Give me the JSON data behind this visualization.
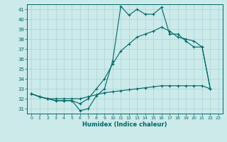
{
  "title": "",
  "xlabel": "Humidex (Indice chaleur)",
  "xlim": [
    -0.5,
    23.5
  ],
  "ylim": [
    30.5,
    41.5
  ],
  "yticks": [
    31,
    32,
    33,
    34,
    35,
    36,
    37,
    38,
    39,
    40,
    41
  ],
  "xticks": [
    0,
    1,
    2,
    3,
    4,
    5,
    6,
    7,
    8,
    9,
    10,
    11,
    12,
    13,
    14,
    15,
    16,
    17,
    18,
    19,
    20,
    21,
    22,
    23
  ],
  "background_color": "#cceaea",
  "grid_color": "#aad4d4",
  "line_color": "#006666",
  "line1_x": [
    0,
    1,
    2,
    3,
    4,
    5,
    6,
    7,
    8,
    9,
    10,
    11,
    12,
    13,
    14,
    15,
    16,
    17,
    18,
    19,
    20,
    21,
    22
  ],
  "line1_y": [
    32.5,
    32.2,
    32.0,
    31.8,
    31.8,
    31.8,
    30.8,
    31.0,
    32.3,
    33.0,
    35.8,
    41.3,
    40.4,
    41.0,
    40.5,
    40.5,
    41.2,
    38.5,
    38.5,
    37.8,
    37.2,
    37.2,
    33.0
  ],
  "line2_x": [
    0,
    1,
    2,
    3,
    4,
    5,
    6,
    7,
    8,
    9,
    10,
    11,
    12,
    13,
    14,
    15,
    16,
    17,
    18,
    19,
    20,
    21,
    22
  ],
  "line2_y": [
    32.5,
    32.2,
    32.0,
    31.8,
    31.8,
    31.8,
    31.5,
    32.0,
    33.0,
    34.0,
    35.5,
    36.8,
    37.5,
    38.2,
    38.5,
    38.8,
    39.2,
    38.8,
    38.2,
    38.0,
    37.8,
    37.2,
    33.0
  ],
  "line3_x": [
    0,
    1,
    2,
    3,
    4,
    5,
    6,
    7,
    8,
    9,
    10,
    11,
    12,
    13,
    14,
    15,
    16,
    17,
    18,
    19,
    20,
    21,
    22
  ],
  "line3_y": [
    32.5,
    32.2,
    32.0,
    32.0,
    32.0,
    32.0,
    32.0,
    32.2,
    32.4,
    32.6,
    32.7,
    32.8,
    32.9,
    33.0,
    33.1,
    33.2,
    33.3,
    33.3,
    33.3,
    33.3,
    33.3,
    33.3,
    33.0
  ]
}
